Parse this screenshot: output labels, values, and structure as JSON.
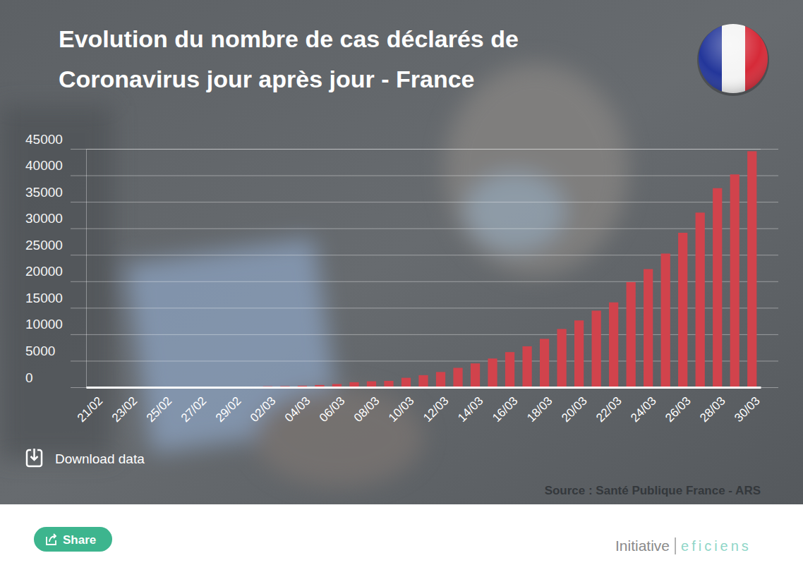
{
  "chart_data": {
    "type": "bar",
    "title": "Evolution du nombre de cas déclarés de Coronavirus jour après jour - France",
    "categories": [
      "21/02",
      null,
      "23/02",
      null,
      "25/02",
      null,
      "27/02",
      null,
      "29/02",
      null,
      "02/03",
      null,
      "04/03",
      null,
      "06/03",
      null,
      "08/03",
      null,
      "10/03",
      null,
      "12/03",
      null,
      "14/03",
      null,
      "16/03",
      null,
      "18/03",
      null,
      "20/03",
      null,
      "22/03",
      null,
      "24/03",
      null,
      "26/03",
      null,
      "28/03",
      null,
      "30/03"
    ],
    "values": [
      12,
      12,
      12,
      12,
      14,
      18,
      38,
      57,
      100,
      130,
      191,
      212,
      285,
      423,
      613,
      949,
      1126,
      1209,
      1784,
      2281,
      2876,
      3661,
      4499,
      5423,
      6633,
      7730,
      9134,
      10995,
      12612,
      14459,
      16018,
      19856,
      22302,
      25233,
      29155,
      32964,
      37575,
      40174,
      44550
    ],
    "color": "#d1434c",
    "ylim": [
      0,
      45000
    ],
    "yticks": [
      0,
      5000,
      10000,
      15000,
      20000,
      25000,
      30000,
      35000,
      40000,
      45000
    ],
    "grid": true,
    "source": "Source : Santé Publique France - ARS"
  },
  "page": {
    "download": "Download data",
    "share": "Share",
    "brand": "Initiative",
    "brand_name": "eficiens"
  }
}
